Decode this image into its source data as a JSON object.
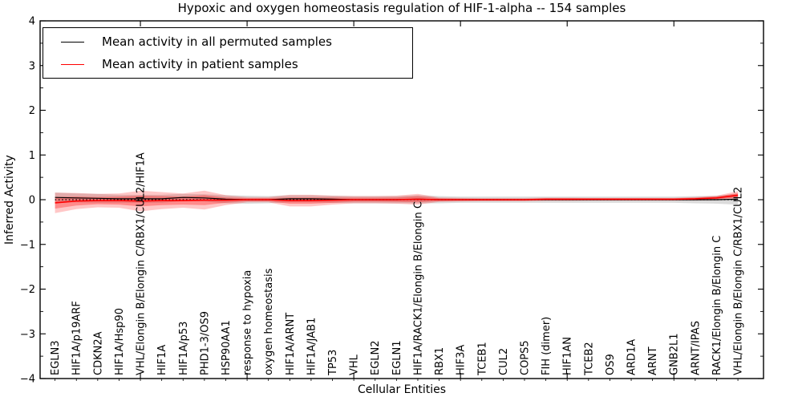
{
  "figure": {
    "title": "Hypoxic and oxygen homeostasis regulation of HIF-1-alpha -- 154 samples",
    "xlabel": "Cellular Entities",
    "ylabel": "Inferred Activity"
  },
  "legend": {
    "items": [
      {
        "label": "Mean activity in all permuted samples",
        "color": "#000000"
      },
      {
        "label": "Mean activity in patient samples",
        "color": "#ff0000"
      }
    ]
  },
  "chart_data": {
    "type": "line",
    "title": "Hypoxic and oxygen homeostasis regulation of HIF-1-alpha -- 154 samples",
    "xlabel": "Cellular Entities",
    "ylabel": "Inferred Activity",
    "ylim": [
      -4,
      4
    ],
    "xlim": [
      0.3,
      34.2
    ],
    "yticks": [
      4,
      3,
      2,
      1,
      0,
      -1,
      -2,
      -3,
      -4
    ],
    "ytick_labels": [
      "4",
      "3",
      "2",
      "1",
      "0",
      "−1",
      "−2",
      "−3",
      "−4"
    ],
    "ytick_minor_step": 0.5,
    "xticks": [
      5,
      10,
      15,
      20,
      25,
      30
    ],
    "grid": false,
    "legend_position": "upper left",
    "zero_line": {
      "show": true,
      "style": "dotted",
      "color": "#000000"
    },
    "categories": [
      "EGLN3",
      "HIF1A/p19ARF",
      "CDKN2A",
      "HIF1A/Hsp90",
      "VHL/Elongin B/Elongin C/RBX1/CUL2/HIF1A",
      "HIF1A",
      "HIF1A/p53",
      "PHD1-3/OS9",
      "HSP90AA1",
      "response to hypoxia",
      "oxygen homeostasis",
      "HIF1A/ARNT",
      "HIF1A/JAB1",
      "TP53",
      "VHL",
      "EGLN2",
      "EGLN1",
      "HIF1A/RACK1/Elongin B/Elongin C",
      "RBX1",
      "HIF3A",
      "TCEB1",
      "CUL2",
      "COPS5",
      "FIH (dimer)",
      "HIF1AN",
      "TCEB2",
      "OS9",
      "ARD1A",
      "ARNT",
      "GNB2L1",
      "ARNT/IPAS",
      "RACK1/Elongin B/Elongin C",
      "VHL/Elongin B/Elongin C/RBX1/CUL2"
    ],
    "series": [
      {
        "name": "Mean activity in all permuted samples",
        "color": "#000000",
        "values": [
          0.05,
          0.04,
          0.03,
          0.02,
          0.02,
          0.02,
          0.05,
          0.04,
          0.01,
          0.0,
          0.0,
          0.02,
          0.02,
          0.01,
          0.0,
          0.0,
          0.0,
          0.01,
          0.0,
          0.0,
          0.0,
          0.0,
          0.0,
          0.0,
          0.0,
          0.0,
          0.0,
          0.0,
          0.0,
          0.0,
          0.0,
          0.0,
          0.01
        ]
      },
      {
        "name": "Mean activity in patient samples",
        "color": "#ff0000",
        "values": [
          -0.07,
          -0.03,
          -0.02,
          -0.02,
          -0.03,
          -0.02,
          -0.02,
          -0.01,
          -0.01,
          0.0,
          0.0,
          -0.02,
          -0.02,
          -0.01,
          0.0,
          0.0,
          0.0,
          0.01,
          0.0,
          0.0,
          0.0,
          0.0,
          0.0,
          0.01,
          0.01,
          0.01,
          0.01,
          0.01,
          0.01,
          0.01,
          0.02,
          0.04,
          0.1
        ]
      }
    ],
    "bands": [
      {
        "name": "permuted-samples-spread",
        "series": 0,
        "color": "rgba(0,0,0,0.14)",
        "half_widths": [
          0.11,
          0.1,
          0.1,
          0.09,
          0.09,
          0.09,
          0.08,
          0.08,
          0.09,
          0.09,
          0.08,
          0.08,
          0.08,
          0.08,
          0.08,
          0.08,
          0.08,
          0.09,
          0.08,
          0.07,
          0.07,
          0.07,
          0.07,
          0.07,
          0.07,
          0.07,
          0.07,
          0.07,
          0.07,
          0.07,
          0.08,
          0.09,
          0.12
        ]
      },
      {
        "name": "patient-samples-spread-outer",
        "series": 1,
        "color": "rgba(255,0,0,0.22)",
        "half_widths": [
          0.23,
          0.18,
          0.15,
          0.16,
          0.23,
          0.19,
          0.16,
          0.21,
          0.11,
          0.06,
          0.06,
          0.13,
          0.13,
          0.1,
          0.08,
          0.08,
          0.09,
          0.12,
          0.05,
          0.04,
          0.035,
          0.035,
          0.035,
          0.035,
          0.035,
          0.03,
          0.03,
          0.03,
          0.03,
          0.03,
          0.04,
          0.05,
          0.09
        ]
      },
      {
        "name": "patient-samples-spread-inner",
        "series": 1,
        "color": "rgba(255,0,0,0.30)",
        "half_widths": [
          0.13,
          0.1,
          0.08,
          0.09,
          0.12,
          0.1,
          0.09,
          0.11,
          0.06,
          0.035,
          0.035,
          0.07,
          0.07,
          0.06,
          0.045,
          0.045,
          0.05,
          0.07,
          0.03,
          0.025,
          0.02,
          0.02,
          0.02,
          0.02,
          0.02,
          0.02,
          0.02,
          0.02,
          0.02,
          0.02,
          0.025,
          0.03,
          0.05
        ]
      }
    ]
  }
}
